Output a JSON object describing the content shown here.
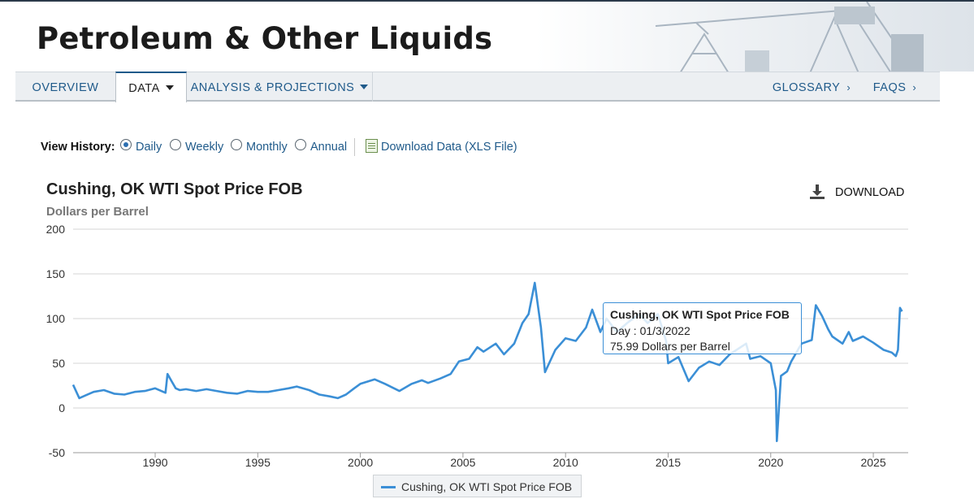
{
  "header": {
    "title": "Petroleum & Other Liquids"
  },
  "nav": {
    "tabs": [
      {
        "label": "OVERVIEW"
      },
      {
        "label": "DATA"
      },
      {
        "label": "ANALYSIS & PROJECTIONS"
      }
    ],
    "right_tabs": [
      {
        "label": "GLOSSARY"
      },
      {
        "label": "FAQS"
      }
    ],
    "active_tab": "DATA"
  },
  "view_history": {
    "label": "View History:",
    "options": [
      "Daily",
      "Weekly",
      "Monthly",
      "Annual"
    ],
    "selected": "Daily",
    "download_link": "Download Data (XLS File)"
  },
  "download_button": {
    "label": "DOWNLOAD",
    "icon": "download-icon"
  },
  "tooltip": {
    "title": "Cushing, OK WTI Spot Price FOB",
    "line1": "Day : 01/3/2022",
    "line2": "75.99 Dollars per Barrel"
  },
  "colors": {
    "series": "#3b8fd6",
    "link": "#1f5a8a",
    "grid": "#d6d6d6"
  },
  "chart_data": {
    "type": "line",
    "title": "Cushing, OK WTI Spot Price FOB",
    "ylabel": "Dollars per Barrel",
    "xlabel": "",
    "xlim": [
      1986.0,
      2026.7
    ],
    "ylim": [
      -50,
      200
    ],
    "yticks": [
      -50,
      0,
      50,
      100,
      150,
      200
    ],
    "xticks": [
      1990,
      1995,
      2000,
      2005,
      2010,
      2015,
      2020,
      2025
    ],
    "grid": true,
    "legend_position": "bottom-center",
    "series": [
      {
        "name": "Cushing, OK WTI Spot Price FOB",
        "x": [
          1986.0,
          1986.3,
          1986.6,
          1987.0,
          1987.5,
          1988.0,
          1988.5,
          1989.0,
          1989.5,
          1990.0,
          1990.5,
          1990.6,
          1990.8,
          1991.0,
          1991.2,
          1991.5,
          1992.0,
          1992.5,
          1993.0,
          1993.5,
          1994.0,
          1994.5,
          1995.0,
          1995.5,
          1996.0,
          1996.5,
          1996.9,
          1997.5,
          1998.0,
          1998.5,
          1998.9,
          1999.3,
          1999.7,
          2000.0,
          2000.7,
          2001.2,
          2001.9,
          2002.5,
          2003.0,
          2003.3,
          2003.9,
          2004.4,
          2004.8,
          2005.3,
          2005.7,
          2006.0,
          2006.6,
          2007.0,
          2007.5,
          2007.9,
          2008.2,
          2008.5,
          2008.8,
          2009.0,
          2009.5,
          2010.0,
          2010.5,
          2011.0,
          2011.3,
          2011.7,
          2012.0,
          2012.5,
          2013.0,
          2013.6,
          2014.0,
          2014.5,
          2014.9,
          2015.0,
          2015.5,
          2016.0,
          2016.5,
          2017.0,
          2017.5,
          2018.0,
          2018.8,
          2019.0,
          2019.5,
          2020.0,
          2020.25,
          2020.3,
          2020.5,
          2020.8,
          2021.0,
          2021.5,
          2022.0,
          2022.2,
          2022.5,
          2022.8,
          2023.0,
          2023.5,
          2023.8,
          2024.0,
          2024.5,
          2025.0,
          2025.5,
          2025.9,
          2026.1,
          2026.2,
          2026.3,
          2026.4
        ],
        "y": [
          26,
          11,
          14,
          18,
          20,
          16,
          15,
          18,
          19,
          22,
          17,
          38,
          30,
          22,
          20,
          21,
          19,
          21,
          19,
          17,
          16,
          19,
          18,
          18,
          20,
          22,
          24,
          20,
          15,
          13,
          11,
          15,
          22,
          27,
          32,
          27,
          19,
          27,
          31,
          28,
          33,
          38,
          52,
          55,
          68,
          63,
          72,
          60,
          72,
          95,
          105,
          140,
          90,
          40,
          65,
          78,
          75,
          90,
          110,
          85,
          100,
          85,
          95,
          105,
          95,
          105,
          75,
          50,
          57,
          30,
          45,
          52,
          48,
          60,
          72,
          55,
          58,
          50,
          20,
          -37,
          36,
          41,
          52,
          72,
          76,
          115,
          103,
          88,
          80,
          72,
          85,
          75,
          80,
          73,
          65,
          62,
          58,
          65,
          112,
          108
        ]
      }
    ]
  }
}
